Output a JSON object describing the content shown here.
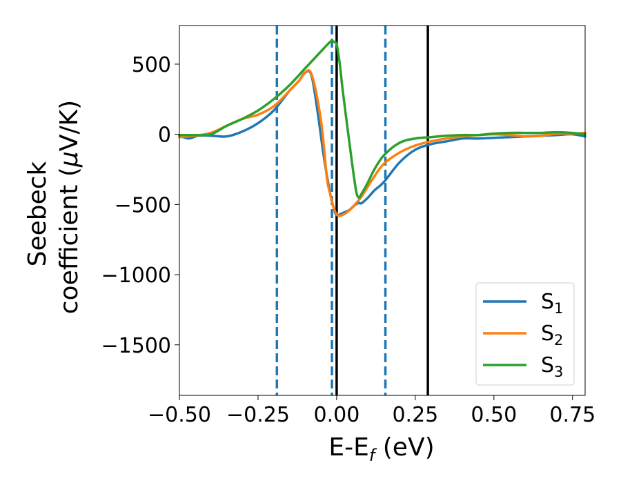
{
  "chart_data": {
    "type": "line",
    "title": "",
    "xlabel": {
      "main": "E-E",
      "sub": "f",
      "unit": " (eV)"
    },
    "ylabel": {
      "line1": "Seebeck",
      "line2_pre": "coefficient  (",
      "mu": "μ",
      "line2_post": "V/K)"
    },
    "xlim": [
      -0.5,
      0.79
    ],
    "ylim": [
      -1860,
      775
    ],
    "xticks": [
      -0.5,
      -0.25,
      0.0,
      0.25,
      0.5,
      0.75
    ],
    "xtick_labels": [
      "−0.50",
      "−0.25",
      "0.00",
      "0.25",
      "0.50",
      "0.75"
    ],
    "yticks": [
      500,
      0,
      -500,
      -1000,
      -1500
    ],
    "ytick_labels": [
      "500",
      "0",
      "−500",
      "−1000",
      "−1500"
    ],
    "grid": false,
    "legend_position": "lower-right",
    "vlines_dashed": {
      "x": [
        -0.19,
        -0.015,
        0.155
      ],
      "color": "#1f77b4"
    },
    "vlines_solid": {
      "x": [
        0.0,
        0.29
      ],
      "color": "#000000"
    },
    "series": [
      {
        "name": "S",
        "sub": "1",
        "color": "#1f77b4",
        "x": [
          -0.5,
          -0.47,
          -0.44,
          -0.4,
          -0.35,
          -0.3,
          -0.25,
          -0.2,
          -0.15,
          -0.12,
          -0.1,
          -0.08,
          -0.06,
          -0.04,
          -0.02,
          -0.01,
          0.0,
          0.02,
          0.04,
          0.06,
          0.07,
          0.08,
          0.1,
          0.12,
          0.15,
          0.2,
          0.25,
          0.3,
          0.35,
          0.4,
          0.45,
          0.5,
          0.55,
          0.6,
          0.65,
          0.7,
          0.75,
          0.79
        ],
        "y": [
          -10,
          -30,
          -10,
          -10,
          -15,
          20,
          80,
          170,
          310,
          380,
          440,
          420,
          150,
          -170,
          -430,
          -520,
          -575,
          -560,
          -540,
          -500,
          -490,
          -490,
          -450,
          -400,
          -340,
          -200,
          -110,
          -70,
          -50,
          -30,
          -30,
          -25,
          -20,
          -15,
          -10,
          -5,
          0,
          -15
        ]
      },
      {
        "name": "S",
        "sub": "2",
        "color": "#ff7f0e",
        "x": [
          -0.5,
          -0.45,
          -0.4,
          -0.35,
          -0.3,
          -0.25,
          -0.2,
          -0.15,
          -0.12,
          -0.1,
          -0.085,
          -0.07,
          -0.05,
          -0.04,
          -0.03,
          -0.02,
          -0.01,
          0.0,
          0.01,
          0.03,
          0.05,
          0.07,
          0.08,
          0.1,
          0.12,
          0.15,
          0.2,
          0.25,
          0.3,
          0.35,
          0.4,
          0.45,
          0.5,
          0.55,
          0.6,
          0.65,
          0.7,
          0.75,
          0.79
        ],
        "y": [
          -20,
          -10,
          10,
          60,
          110,
          140,
          200,
          310,
          380,
          440,
          450,
          350,
          100,
          -100,
          -330,
          -430,
          -520,
          -570,
          -580,
          -560,
          -520,
          -470,
          -440,
          -370,
          -300,
          -210,
          -130,
          -80,
          -50,
          -30,
          -15,
          -5,
          0,
          -5,
          -15,
          -10,
          5,
          5,
          10
        ]
      },
      {
        "name": "S",
        "sub": "3",
        "color": "#2ca02c",
        "x": [
          -0.5,
          -0.45,
          -0.4,
          -0.35,
          -0.3,
          -0.25,
          -0.2,
          -0.15,
          -0.1,
          -0.05,
          -0.02,
          -0.01,
          0.0,
          0.01,
          0.02,
          0.04,
          0.06,
          0.07,
          0.08,
          0.1,
          0.12,
          0.15,
          0.2,
          0.25,
          0.3,
          0.35,
          0.4,
          0.45,
          0.5,
          0.55,
          0.6,
          0.65,
          0.7,
          0.75,
          0.79
        ],
        "y": [
          -5,
          -5,
          0,
          60,
          110,
          170,
          250,
          350,
          470,
          590,
          660,
          660,
          640,
          500,
          300,
          -50,
          -380,
          -450,
          -420,
          -340,
          -250,
          -150,
          -60,
          -30,
          -20,
          -10,
          -5,
          -5,
          5,
          10,
          10,
          10,
          15,
          10,
          0
        ]
      }
    ]
  }
}
